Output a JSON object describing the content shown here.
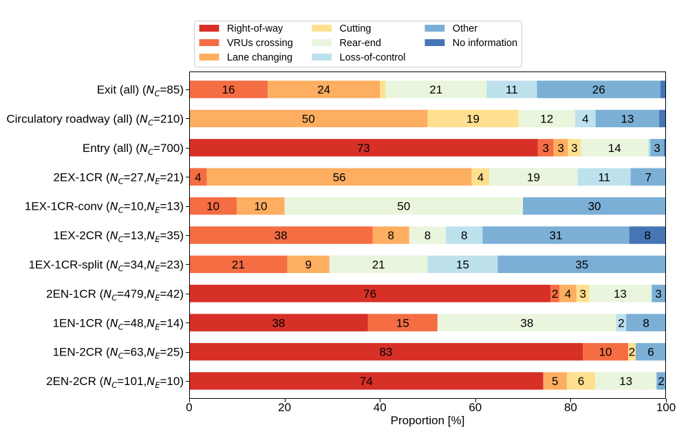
{
  "chart_data": {
    "type": "bar",
    "stacked": true,
    "horizontal": true,
    "xlabel": "Proportion [%]",
    "xlim": [
      0,
      100
    ],
    "xticks": [
      0,
      20,
      40,
      60,
      80,
      100
    ],
    "grid": false,
    "legend": "top",
    "categories": [
      {
        "runs": [
          {
            "text": "Exit (all) ("
          },
          {
            "text": "N",
            "sub": "C"
          },
          {
            "text": "=85)"
          }
        ]
      },
      {
        "runs": [
          {
            "text": "Circulatory roadway (all) ("
          },
          {
            "text": "N",
            "sub": "C"
          },
          {
            "text": "=210)"
          }
        ]
      },
      {
        "runs": [
          {
            "text": "Entry (all) ("
          },
          {
            "text": "N",
            "sub": "C"
          },
          {
            "text": "=700)"
          }
        ]
      },
      {
        "runs": [
          {
            "text": "2EX-1CR ("
          },
          {
            "text": "N",
            "sub": "C"
          },
          {
            "text": "=27,"
          },
          {
            "text": "N",
            "sub": "E"
          },
          {
            "text": "=21)"
          }
        ]
      },
      {
        "runs": [
          {
            "text": "1EX-1CR-conv ("
          },
          {
            "text": "N",
            "sub": "C"
          },
          {
            "text": "=10,"
          },
          {
            "text": "N",
            "sub": "E"
          },
          {
            "text": "=13)"
          }
        ]
      },
      {
        "runs": [
          {
            "text": "1EX-2CR ("
          },
          {
            "text": "N",
            "sub": "C"
          },
          {
            "text": "=13,"
          },
          {
            "text": "N",
            "sub": "E"
          },
          {
            "text": "=35)"
          }
        ]
      },
      {
        "runs": [
          {
            "text": "1EX-1CR-split ("
          },
          {
            "text": "N",
            "sub": "C"
          },
          {
            "text": "=34,"
          },
          {
            "text": "N",
            "sub": "E"
          },
          {
            "text": "=23)"
          }
        ]
      },
      {
        "runs": [
          {
            "text": "2EN-1CR ("
          },
          {
            "text": "N",
            "sub": "C"
          },
          {
            "text": "=479,"
          },
          {
            "text": "N",
            "sub": "E"
          },
          {
            "text": "=42)"
          }
        ]
      },
      {
        "runs": [
          {
            "text": "1EN-1CR ("
          },
          {
            "text": "N",
            "sub": "C"
          },
          {
            "text": "=48,"
          },
          {
            "text": "N",
            "sub": "E"
          },
          {
            "text": "=14)"
          }
        ]
      },
      {
        "runs": [
          {
            "text": "1EN-2CR ("
          },
          {
            "text": "N",
            "sub": "C"
          },
          {
            "text": "=63,"
          },
          {
            "text": "N",
            "sub": "E"
          },
          {
            "text": "=25)"
          }
        ]
      },
      {
        "runs": [
          {
            "text": "2EN-2CR ("
          },
          {
            "text": "N",
            "sub": "C"
          },
          {
            "text": "=101,"
          },
          {
            "text": "N",
            "sub": "E"
          },
          {
            "text": "=10)"
          }
        ]
      }
    ],
    "series": [
      {
        "name": "Right-of-way",
        "color": "#d73027",
        "values": [
          0,
          0,
          73.14,
          0,
          0,
          0,
          0,
          75.78,
          37.5,
          82.54,
          74.26
        ],
        "labels": [
          null,
          null,
          "73",
          null,
          null,
          null,
          null,
          "76",
          "38",
          "83",
          "74"
        ]
      },
      {
        "name": "VRUs crossing",
        "color": "#f46d43",
        "values": [
          16.47,
          0,
          3.29,
          3.7,
          10,
          38.46,
          20.59,
          1.88,
          14.58,
          9.52,
          0
        ],
        "labels": [
          "16",
          null,
          "3",
          "4",
          "10",
          "38",
          "21",
          "2",
          "15",
          "10",
          null
        ]
      },
      {
        "name": "Lane changing",
        "color": "#fdae61",
        "values": [
          23.53,
          50,
          3.0,
          55.56,
          10,
          7.69,
          8.82,
          3.55,
          0,
          0,
          4.95
        ],
        "labels": [
          "24",
          "50",
          "3",
          "56",
          "10",
          "8",
          "9",
          "4",
          null,
          null,
          "5"
        ]
      },
      {
        "name": "Cutting",
        "color": "#fee090",
        "values": [
          1.18,
          19.05,
          2.71,
          3.7,
          0,
          0,
          0,
          2.71,
          0,
          1.59,
          5.94
        ],
        "labels": [
          null,
          "19",
          "3",
          "4",
          null,
          null,
          null,
          "3",
          null,
          "2",
          "6"
        ]
      },
      {
        "name": "Rear-end",
        "color": "#eaf5dd",
        "values": [
          21.18,
          11.9,
          14.14,
          18.52,
          50,
          7.69,
          20.59,
          12.94,
          37.5,
          0,
          12.87
        ],
        "labels": [
          "21",
          "12",
          "14",
          "19",
          "50",
          "8",
          "21",
          "13",
          "38",
          null,
          "13"
        ]
      },
      {
        "name": "Loss-of-control",
        "color": "#bde1ed",
        "values": [
          10.59,
          4.29,
          0.43,
          11.11,
          0,
          7.69,
          14.71,
          0.21,
          2.08,
          0,
          0
        ],
        "labels": [
          "11",
          "4",
          null,
          "11",
          null,
          "8",
          "15",
          null,
          "2",
          null,
          null
        ]
      },
      {
        "name": "Other",
        "color": "#7bafd5",
        "values": [
          25.88,
          13.33,
          2.86,
          7.41,
          30,
          30.77,
          35.29,
          2.71,
          8.33,
          6.35,
          1.98
        ],
        "labels": [
          "26",
          "13",
          "3",
          "7",
          "30",
          "31",
          "35",
          "3",
          "8",
          "6",
          "2"
        ]
      },
      {
        "name": "No information",
        "color": "#4575b4",
        "values": [
          1.18,
          1.43,
          0.43,
          0,
          0,
          7.69,
          0,
          0.21,
          0,
          0,
          0
        ],
        "labels": [
          null,
          null,
          null,
          null,
          null,
          "8",
          null,
          null,
          null,
          null,
          null
        ]
      }
    ]
  }
}
